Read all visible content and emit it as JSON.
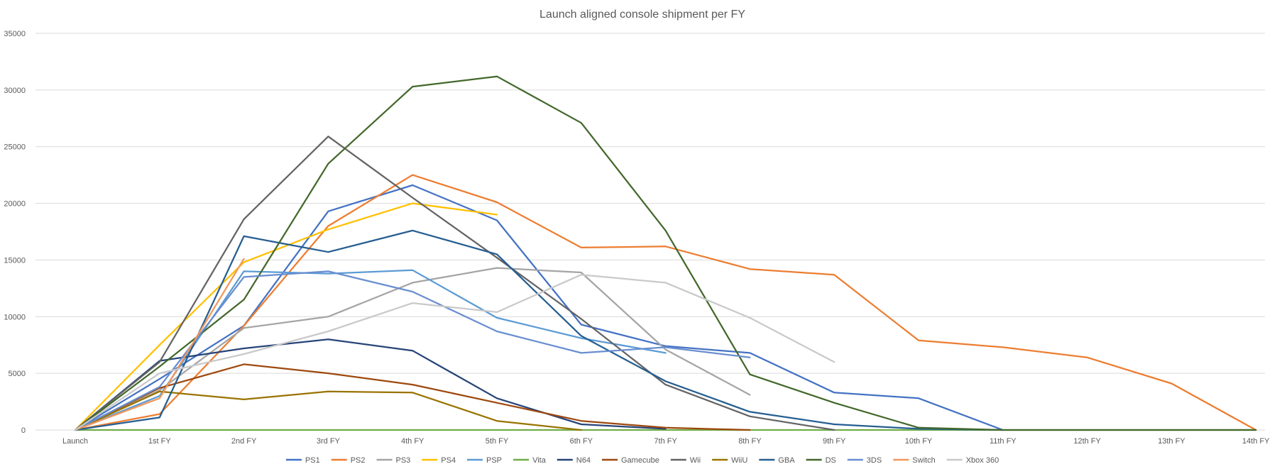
{
  "chart_data": {
    "type": "line",
    "title": "Launch aligned console shipment per FY",
    "xlabel": "",
    "ylabel": "",
    "ylim": [
      0,
      35000
    ],
    "yticks": [
      0,
      5000,
      10000,
      15000,
      20000,
      25000,
      30000,
      35000
    ],
    "grid": true,
    "legend_position": "bottom",
    "categories": [
      "Launch",
      "1st FY",
      "2nd FY",
      "3rd FY",
      "4th FY",
      "5th FY",
      "6th FY",
      "7th FY",
      "8th FY",
      "9th FY",
      "10th FY",
      "11th FY",
      "12th FY",
      "13th FY",
      "14th FY"
    ],
    "series": [
      {
        "name": "PS1",
        "color": "#4472C4",
        "values": [
          0,
          4500,
          9200,
          19300,
          21600,
          18500,
          9300,
          7400,
          6800,
          3300,
          2800,
          0,
          null,
          null,
          null
        ]
      },
      {
        "name": "PS2",
        "color": "#ED7D31",
        "values": [
          0,
          1400,
          9200,
          18000,
          22500,
          20100,
          16100,
          16200,
          14200,
          13700,
          7900,
          7300,
          6400,
          4100,
          0
        ]
      },
      {
        "name": "PS3",
        "color": "#A5A5A5",
        "values": [
          0,
          3500,
          9000,
          10000,
          13000,
          14300,
          13900,
          7100,
          3100,
          null,
          null,
          null,
          null,
          null,
          null
        ]
      },
      {
        "name": "PS4",
        "color": "#FFC000",
        "values": [
          0,
          7500,
          14800,
          17700,
          20000,
          19000,
          null,
          null,
          null,
          null,
          null,
          null,
          null,
          null,
          null
        ]
      },
      {
        "name": "PSP",
        "color": "#5B9BD5",
        "values": [
          0,
          3000,
          14000,
          13800,
          14100,
          9900,
          8100,
          6800,
          null,
          null,
          null,
          null,
          null,
          null,
          null
        ]
      },
      {
        "name": "Vita",
        "color": "#70AD47",
        "values": [
          0,
          0,
          0,
          0,
          0,
          0,
          0,
          0,
          0,
          0,
          0,
          0,
          0,
          0,
          0
        ]
      },
      {
        "name": "N64",
        "color": "#264478",
        "values": [
          0,
          6100,
          7200,
          8000,
          7000,
          2800,
          500,
          100,
          null,
          null,
          null,
          null,
          null,
          null,
          null
        ]
      },
      {
        "name": "Gamecube",
        "color": "#9E480E",
        "values": [
          0,
          3700,
          5800,
          5000,
          4000,
          2400,
          800,
          200,
          0,
          null,
          null,
          null,
          null,
          null,
          null
        ]
      },
      {
        "name": "Wii",
        "color": "#636363",
        "values": [
          0,
          6000,
          18600,
          25900,
          20500,
          15200,
          9800,
          4000,
          1200,
          0,
          null,
          null,
          null,
          null,
          null
        ]
      },
      {
        "name": "WiiU",
        "color": "#997300",
        "values": [
          0,
          3400,
          2700,
          3400,
          3300,
          800,
          0,
          null,
          null,
          null,
          null,
          null,
          null,
          null,
          null
        ]
      },
      {
        "name": "GBA",
        "color": "#255E91",
        "values": [
          0,
          1100,
          17100,
          15700,
          17600,
          15500,
          8300,
          4300,
          1600,
          500,
          100,
          0,
          null,
          null,
          null
        ]
      },
      {
        "name": "DS",
        "color": "#43682B",
        "values": [
          0,
          5600,
          11500,
          23500,
          30300,
          31200,
          27100,
          17600,
          4900,
          2400,
          200,
          0,
          0,
          0,
          0
        ]
      },
      {
        "name": "3DS",
        "color": "#698ED0",
        "values": [
          0,
          3800,
          13500,
          14000,
          12200,
          8700,
          6800,
          7300,
          6400,
          null,
          null,
          null,
          null,
          null,
          null
        ]
      },
      {
        "name": "Switch",
        "color": "#F1975A",
        "values": [
          0,
          2800,
          15100,
          null,
          null,
          null,
          null,
          null,
          null,
          null,
          null,
          null,
          null,
          null,
          null
        ]
      },
      {
        "name": "Xbox 360",
        "color": "#C9C9C9",
        "values": [
          0,
          5000,
          6700,
          8700,
          11200,
          10400,
          13700,
          13000,
          9900,
          6000,
          null,
          null,
          null,
          null,
          null
        ]
      }
    ]
  }
}
